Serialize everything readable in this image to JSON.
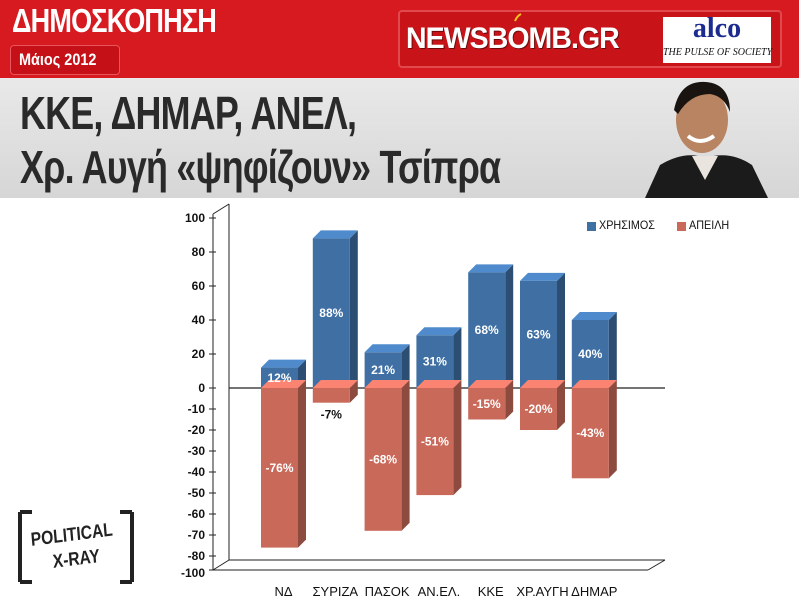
{
  "header": {
    "title": "ΔΗΜΟΣΚΟΠΗΣΗ",
    "date": "Μάιος 2012",
    "site_logo": "NEWSBOMB.GR",
    "pollster_logo": "alco",
    "pollster_tagline": "THE PULSE OF SOCIETY",
    "accent_color": "#d71a20"
  },
  "headline": {
    "line1": "ΚΚΕ, ΔΗΜΑΡ, ΑΝΕΛ,",
    "line2": "Χρ. Αυγή «ψηφίζουν» Τσίπρα"
  },
  "badge": {
    "line1": "POLITICAL",
    "line2": "X-RAY"
  },
  "chart_data": {
    "type": "bar",
    "categories": [
      "ΝΔ",
      "ΣΥΡΙΖΑ",
      "ΠΑΣΟΚ",
      "ΑΝ.ΕΛ.",
      "ΚΚΕ",
      "ΧΡ.ΑΥΓΗ",
      "ΔΗΜΑΡ"
    ],
    "series": [
      {
        "name": "ΧΡΗΣΙΜΟΣ",
        "color": "#3f6fa3",
        "values": [
          12,
          88,
          21,
          31,
          68,
          63,
          40
        ],
        "labels": [
          "12%",
          "88%",
          "21%",
          "31%",
          "68%",
          "63%",
          "40%"
        ]
      },
      {
        "name": "ΑΠΕΙΛΗ",
        "color": "#c9695a",
        "values": [
          -76,
          -7,
          -68,
          -51,
          -15,
          -20,
          -43
        ],
        "labels": [
          "-76%",
          "-7%",
          "-68%",
          "-51%",
          "-15%",
          "-20%",
          "-43%"
        ]
      }
    ],
    "yticks_pos": [
      "100",
      "80",
      "60",
      "40",
      "20",
      "0"
    ],
    "yticks_neg": [
      "-10",
      "-20",
      "-30",
      "-40",
      "-50",
      "-60",
      "-70",
      "-80",
      "-100"
    ],
    "ylim": [
      -100,
      100
    ],
    "legend_position": "top-right",
    "grid": false
  }
}
